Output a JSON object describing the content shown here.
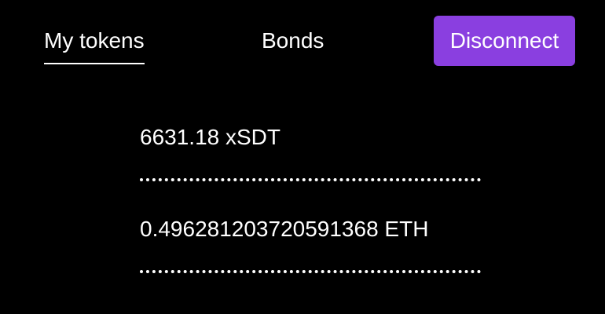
{
  "nav": {
    "tabs": [
      {
        "label": "My tokens",
        "active": true
      },
      {
        "label": "Bonds",
        "active": false
      }
    ],
    "disconnect_label": "Disconnect",
    "accent_color": "#8a3fe0"
  },
  "tokens": [
    {
      "amount": "6631.18 xSDT"
    },
    {
      "amount": "0.496281203720591368 ETH"
    }
  ]
}
